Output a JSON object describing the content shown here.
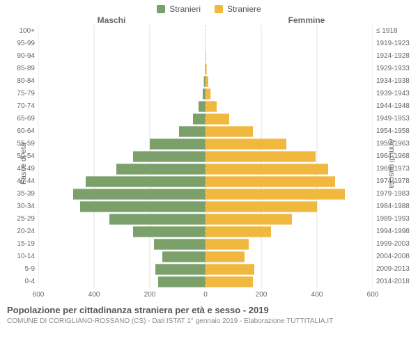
{
  "legend": {
    "male": {
      "label": "Stranieri",
      "color": "#7ba06a"
    },
    "female": {
      "label": "Straniere",
      "color": "#f0b83f"
    }
  },
  "headers": {
    "male": "Maschi",
    "female": "Femmine"
  },
  "axis_titles": {
    "left": "Fasce di età",
    "right": "Anni di nascita"
  },
  "x_axis": {
    "max": 600,
    "ticks": [
      600,
      400,
      200,
      0,
      200,
      400,
      600
    ]
  },
  "rows": [
    {
      "age": "100+",
      "birth": "≤ 1918",
      "m": 0,
      "f": 0
    },
    {
      "age": "95-99",
      "birth": "1919-1923",
      "m": 0,
      "f": 0
    },
    {
      "age": "90-94",
      "birth": "1924-1928",
      "m": 0,
      "f": 2
    },
    {
      "age": "85-89",
      "birth": "1929-1933",
      "m": 2,
      "f": 4
    },
    {
      "age": "80-84",
      "birth": "1934-1938",
      "m": 6,
      "f": 10
    },
    {
      "age": "75-79",
      "birth": "1939-1943",
      "m": 10,
      "f": 18
    },
    {
      "age": "70-74",
      "birth": "1944-1948",
      "m": 25,
      "f": 40
    },
    {
      "age": "65-69",
      "birth": "1949-1953",
      "m": 45,
      "f": 85
    },
    {
      "age": "60-64",
      "birth": "1954-1958",
      "m": 95,
      "f": 170
    },
    {
      "age": "55-59",
      "birth": "1959-1963",
      "m": 200,
      "f": 290
    },
    {
      "age": "50-54",
      "birth": "1964-1968",
      "m": 260,
      "f": 395
    },
    {
      "age": "45-49",
      "birth": "1969-1973",
      "m": 320,
      "f": 440
    },
    {
      "age": "40-44",
      "birth": "1974-1978",
      "m": 430,
      "f": 465
    },
    {
      "age": "35-39",
      "birth": "1979-1983",
      "m": 475,
      "f": 500
    },
    {
      "age": "30-34",
      "birth": "1984-1988",
      "m": 450,
      "f": 400
    },
    {
      "age": "25-29",
      "birth": "1989-1993",
      "m": 345,
      "f": 310
    },
    {
      "age": "20-24",
      "birth": "1994-1998",
      "m": 260,
      "f": 235
    },
    {
      "age": "15-19",
      "birth": "1999-2003",
      "m": 185,
      "f": 155
    },
    {
      "age": "10-14",
      "birth": "2004-2008",
      "m": 155,
      "f": 140
    },
    {
      "age": "5-9",
      "birth": "2009-2013",
      "m": 180,
      "f": 175
    },
    {
      "age": "0-4",
      "birth": "2014-2018",
      "m": 170,
      "f": 170
    }
  ],
  "styling": {
    "grid_color": "#e0e0e0",
    "background": "#ffffff",
    "bar_gap_ratio": 0.15,
    "font_family": "Arial",
    "tick_font_size": 10,
    "axis_title_font_size": 11
  },
  "footer": {
    "title": "Popolazione per cittadinanza straniera per età e sesso - 2019",
    "subtitle": "COMUNE DI CORIGLIANO-ROSSANO (CS) - Dati ISTAT 1° gennaio 2019 - Elaborazione TUTTITALIA.IT"
  }
}
